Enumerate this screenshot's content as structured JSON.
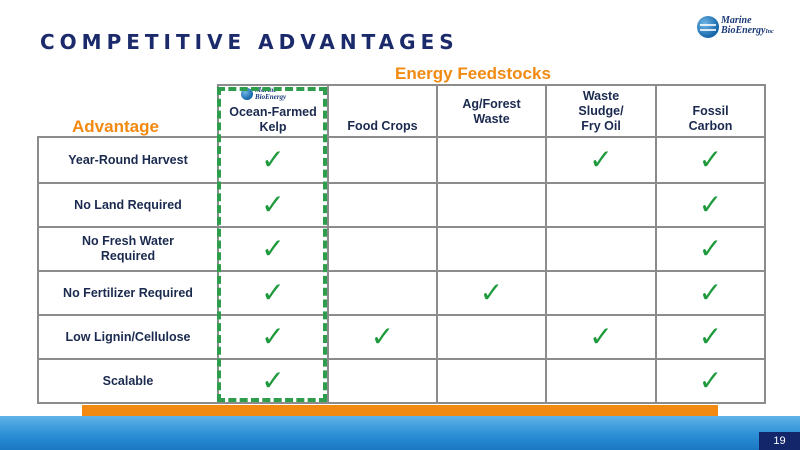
{
  "slide": {
    "title": "COMPETITIVE ADVANTAGES",
    "page_number": "19"
  },
  "logo": {
    "line1": "Marine",
    "line2": "BioEnergy",
    "suffix": "Inc"
  },
  "table": {
    "group_header": "Energy Feedstocks",
    "row_header": "Advantage",
    "columns": [
      {
        "line1": "Ocean-Farmed",
        "line2": "Kelp"
      },
      {
        "line1": "Food Crops",
        "line2": ""
      },
      {
        "line1": "Ag/Forest",
        "line2": "Waste"
      },
      {
        "line1": "Waste",
        "line2": "Sludge/",
        "line3": "Fry Oil"
      },
      {
        "line1": "Fossil",
        "line2": "Carbon"
      }
    ],
    "check_symbol": "✓",
    "rows": [
      {
        "label_line1": "Year-Round Harvest",
        "label_line2": "",
        "checks": [
          "✓",
          "",
          "",
          "✓",
          "✓"
        ]
      },
      {
        "label_line1": "No Land Required",
        "label_line2": "",
        "checks": [
          "✓",
          "",
          "",
          "",
          "✓"
        ]
      },
      {
        "label_line1": "No Fresh Water",
        "label_line2": "Required",
        "checks": [
          "✓",
          "",
          "",
          "",
          "✓"
        ]
      },
      {
        "label_line1": "No Fertilizer Required",
        "label_line2": "",
        "checks": [
          "✓",
          "",
          "✓",
          "",
          "✓"
        ]
      },
      {
        "label_line1": "Low Lignin/Cellulose",
        "label_line2": "",
        "checks": [
          "✓",
          "✓",
          "",
          "✓",
          "✓"
        ]
      },
      {
        "label_line1": "Scalable",
        "label_line2": "",
        "checks": [
          "✓",
          "",
          "",
          "",
          "✓"
        ]
      }
    ]
  },
  "colors": {
    "title": "#1b2a6b",
    "accent_orange": "#f28a12",
    "check_green": "#1e9a3c",
    "highlight_dash": "#2e9e4c",
    "footer_blue": "#2b8fd6",
    "page_box": "#14266a"
  },
  "icons": {
    "logo": "marine-bioenergy-globe-icon",
    "check": "checkmark-icon"
  }
}
